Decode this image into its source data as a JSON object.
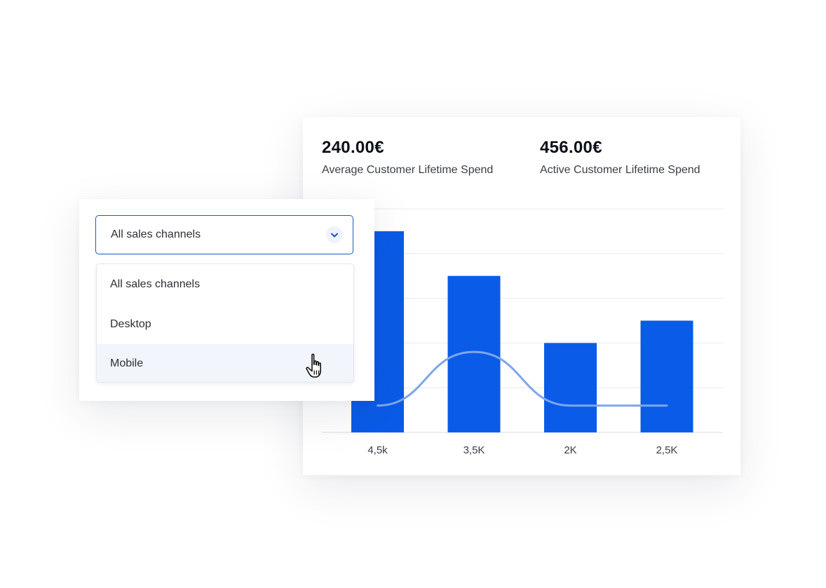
{
  "metrics": [
    {
      "value": "240.00€",
      "label": "Average Customer Lifetime Spend"
    },
    {
      "value": "456.00€",
      "label": "Active Customer Lifetime Spend"
    }
  ],
  "dropdown": {
    "selected": "All sales channels",
    "options": [
      "All sales channels",
      "Desktop",
      "Mobile"
    ],
    "hovered": "Mobile"
  },
  "icons": {
    "chevron": "chevron-down-icon",
    "cursor": "hand-pointer-cursor-icon"
  },
  "colors": {
    "bar": "#0a5be8",
    "line": "#7ea6ea",
    "accent_border": "#1a56c9",
    "hover_bg": "#f2f5fb"
  },
  "chart_data": {
    "type": "bar",
    "categories": [
      "4,5k",
      "3,5K",
      "2K",
      "2,5K"
    ],
    "values": [
      4.5,
      3.5,
      2.0,
      2.5
    ],
    "ylim": [
      0,
      5
    ],
    "grid": true,
    "trend_line": [
      0.6,
      1.8,
      0.6,
      0.6
    ],
    "title": "",
    "xlabel": "",
    "ylabel": ""
  }
}
